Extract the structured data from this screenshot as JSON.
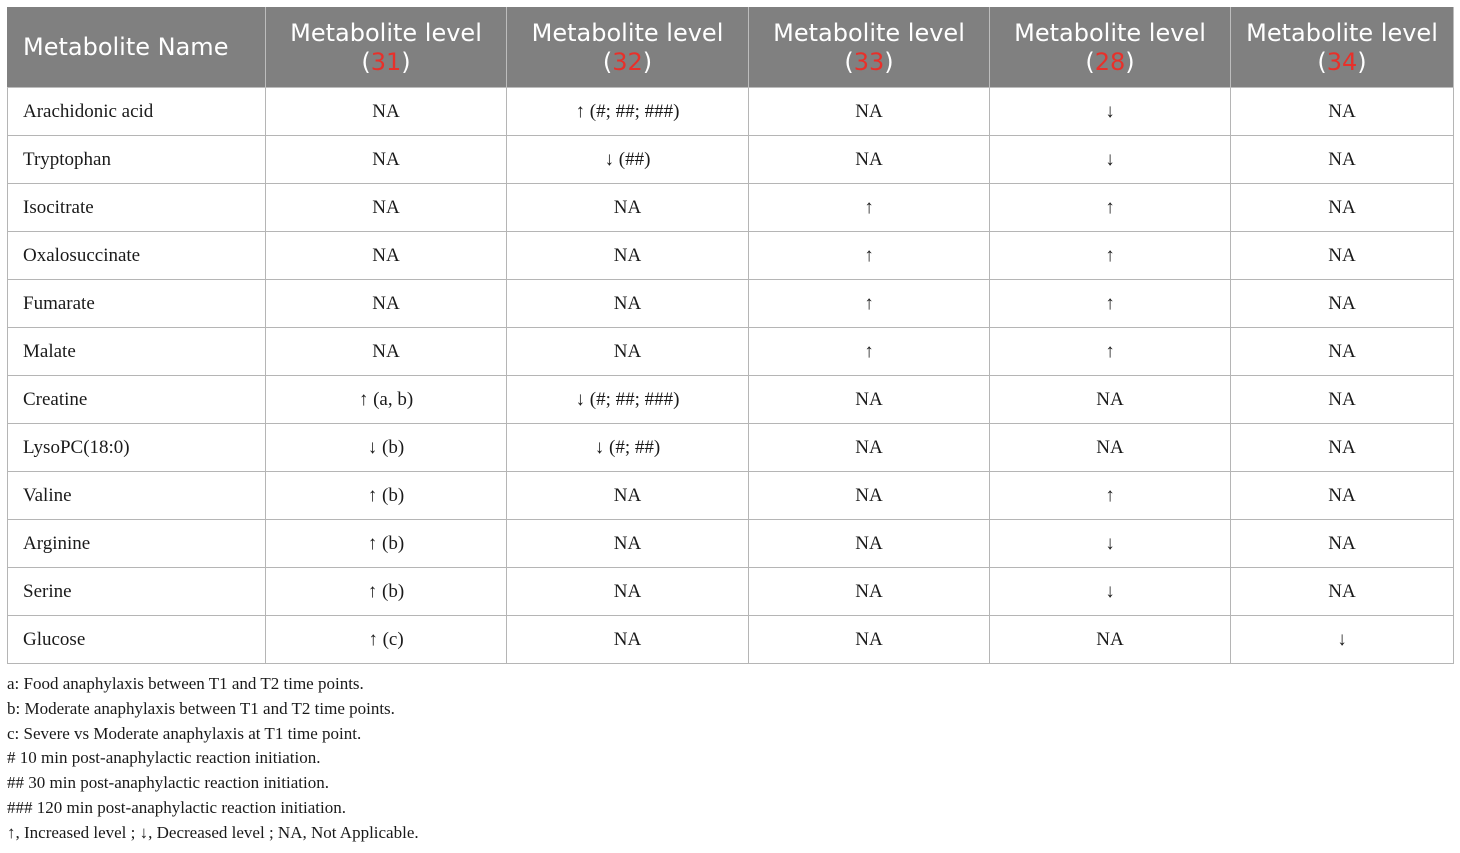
{
  "table": {
    "headers": [
      {
        "text": "Metabolite Name"
      },
      {
        "text": "Metabolite level",
        "ref": "31"
      },
      {
        "text": "Metabolite level",
        "ref": "32"
      },
      {
        "text": "Metabolite level",
        "ref": "33"
      },
      {
        "text": "Metabolite level",
        "ref": "28"
      },
      {
        "text": "Metabolite level",
        "ref": "34"
      }
    ],
    "rows": [
      [
        "Arachidonic acid",
        "NA",
        "↑ (#; ##; ###)",
        "NA",
        "↓",
        "NA"
      ],
      [
        "Tryptophan",
        "NA",
        "↓ (##)",
        "NA",
        "↓",
        "NA"
      ],
      [
        "Isocitrate",
        "NA",
        "NA",
        "↑",
        "↑",
        "NA"
      ],
      [
        "Oxalosuccinate",
        "NA",
        "NA",
        "↑",
        "↑",
        "NA"
      ],
      [
        "Fumarate",
        "NA",
        "NA",
        "↑",
        "↑",
        "NA"
      ],
      [
        "Malate",
        "NA",
        "NA",
        "↑",
        "↑",
        "NA"
      ],
      [
        "Creatine",
        "↑ (a, b)",
        "↓ (#; ##; ###)",
        "NA",
        "NA",
        "NA"
      ],
      [
        "LysoPC(18:0)",
        "↓ (b)",
        "↓ (#; ##)",
        "NA",
        "NA",
        "NA"
      ],
      [
        "Valine",
        "↑ (b)",
        "NA",
        "NA",
        "↑",
        "NA"
      ],
      [
        "Arginine",
        "↑ (b)",
        "NA",
        "NA",
        "↓",
        "NA"
      ],
      [
        "Serine",
        "↑ (b)",
        "NA",
        "NA",
        "↓",
        "NA"
      ],
      [
        "Glucose",
        "↑ (c)",
        "NA",
        "NA",
        "NA",
        "↓"
      ]
    ]
  },
  "footnotes": [
    "a: Food anaphylaxis between T1 and T2 time points.",
    "b: Moderate anaphylaxis between T1 and T2 time points.",
    "c: Severe vs Moderate anaphylaxis at T1 time point.",
    "# 10 min post-anaphylactic reaction initiation.",
    "## 30 min post-anaphylactic reaction initiation.",
    "### 120 min post-anaphylactic reaction initiation.",
    "↑, Increased level ; ↓, Decreased level ; NA, Not Applicable."
  ],
  "colors": {
    "header_bg": "#808080",
    "header_text": "#ffffff",
    "reference_link": "#e8302a",
    "border": "#b5b5b5"
  }
}
